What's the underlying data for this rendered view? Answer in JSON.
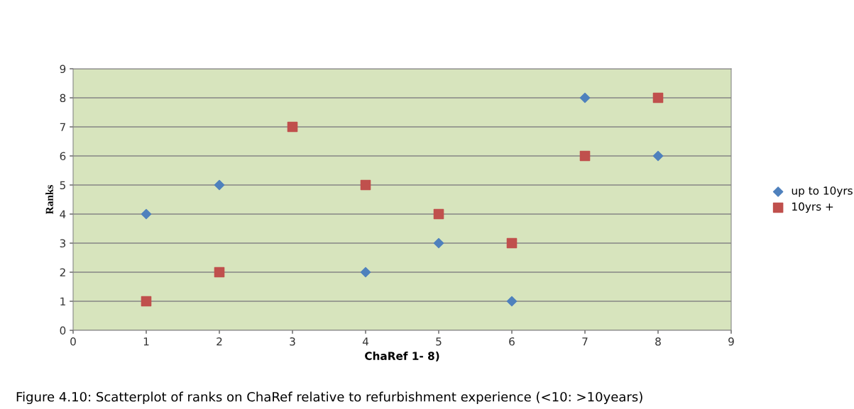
{
  "chart_data": {
    "type": "scatter",
    "xlabel": "ChaRef 1- 8)",
    "ylabel": "Ranks",
    "x": [
      1,
      2,
      3,
      4,
      5,
      6,
      7,
      8
    ],
    "series": [
      {
        "name": "up to 10yrs",
        "color": "#4f81bd",
        "marker": "diamond",
        "values": [
          4,
          5,
          null,
          2,
          3,
          1,
          8,
          6
        ]
      },
      {
        "name": "10yrs +",
        "color": "#c0504d",
        "marker": "square",
        "values": [
          1,
          2,
          7,
          5,
          4,
          3,
          6,
          8
        ]
      }
    ],
    "xlim": [
      0,
      9
    ],
    "xticks": [
      0,
      1,
      2,
      3,
      4,
      5,
      6,
      7,
      8,
      9
    ],
    "ylim": [
      0,
      9
    ],
    "yticks": [
      0,
      1,
      2,
      3,
      4,
      5,
      6,
      7,
      8,
      9
    ],
    "grid": "y",
    "legend": "right",
    "annotations": [
      "Figure 4.10: Scatterplot of ranks on ChaRef relative to refurbishment experience (<10: >10years)"
    ]
  }
}
